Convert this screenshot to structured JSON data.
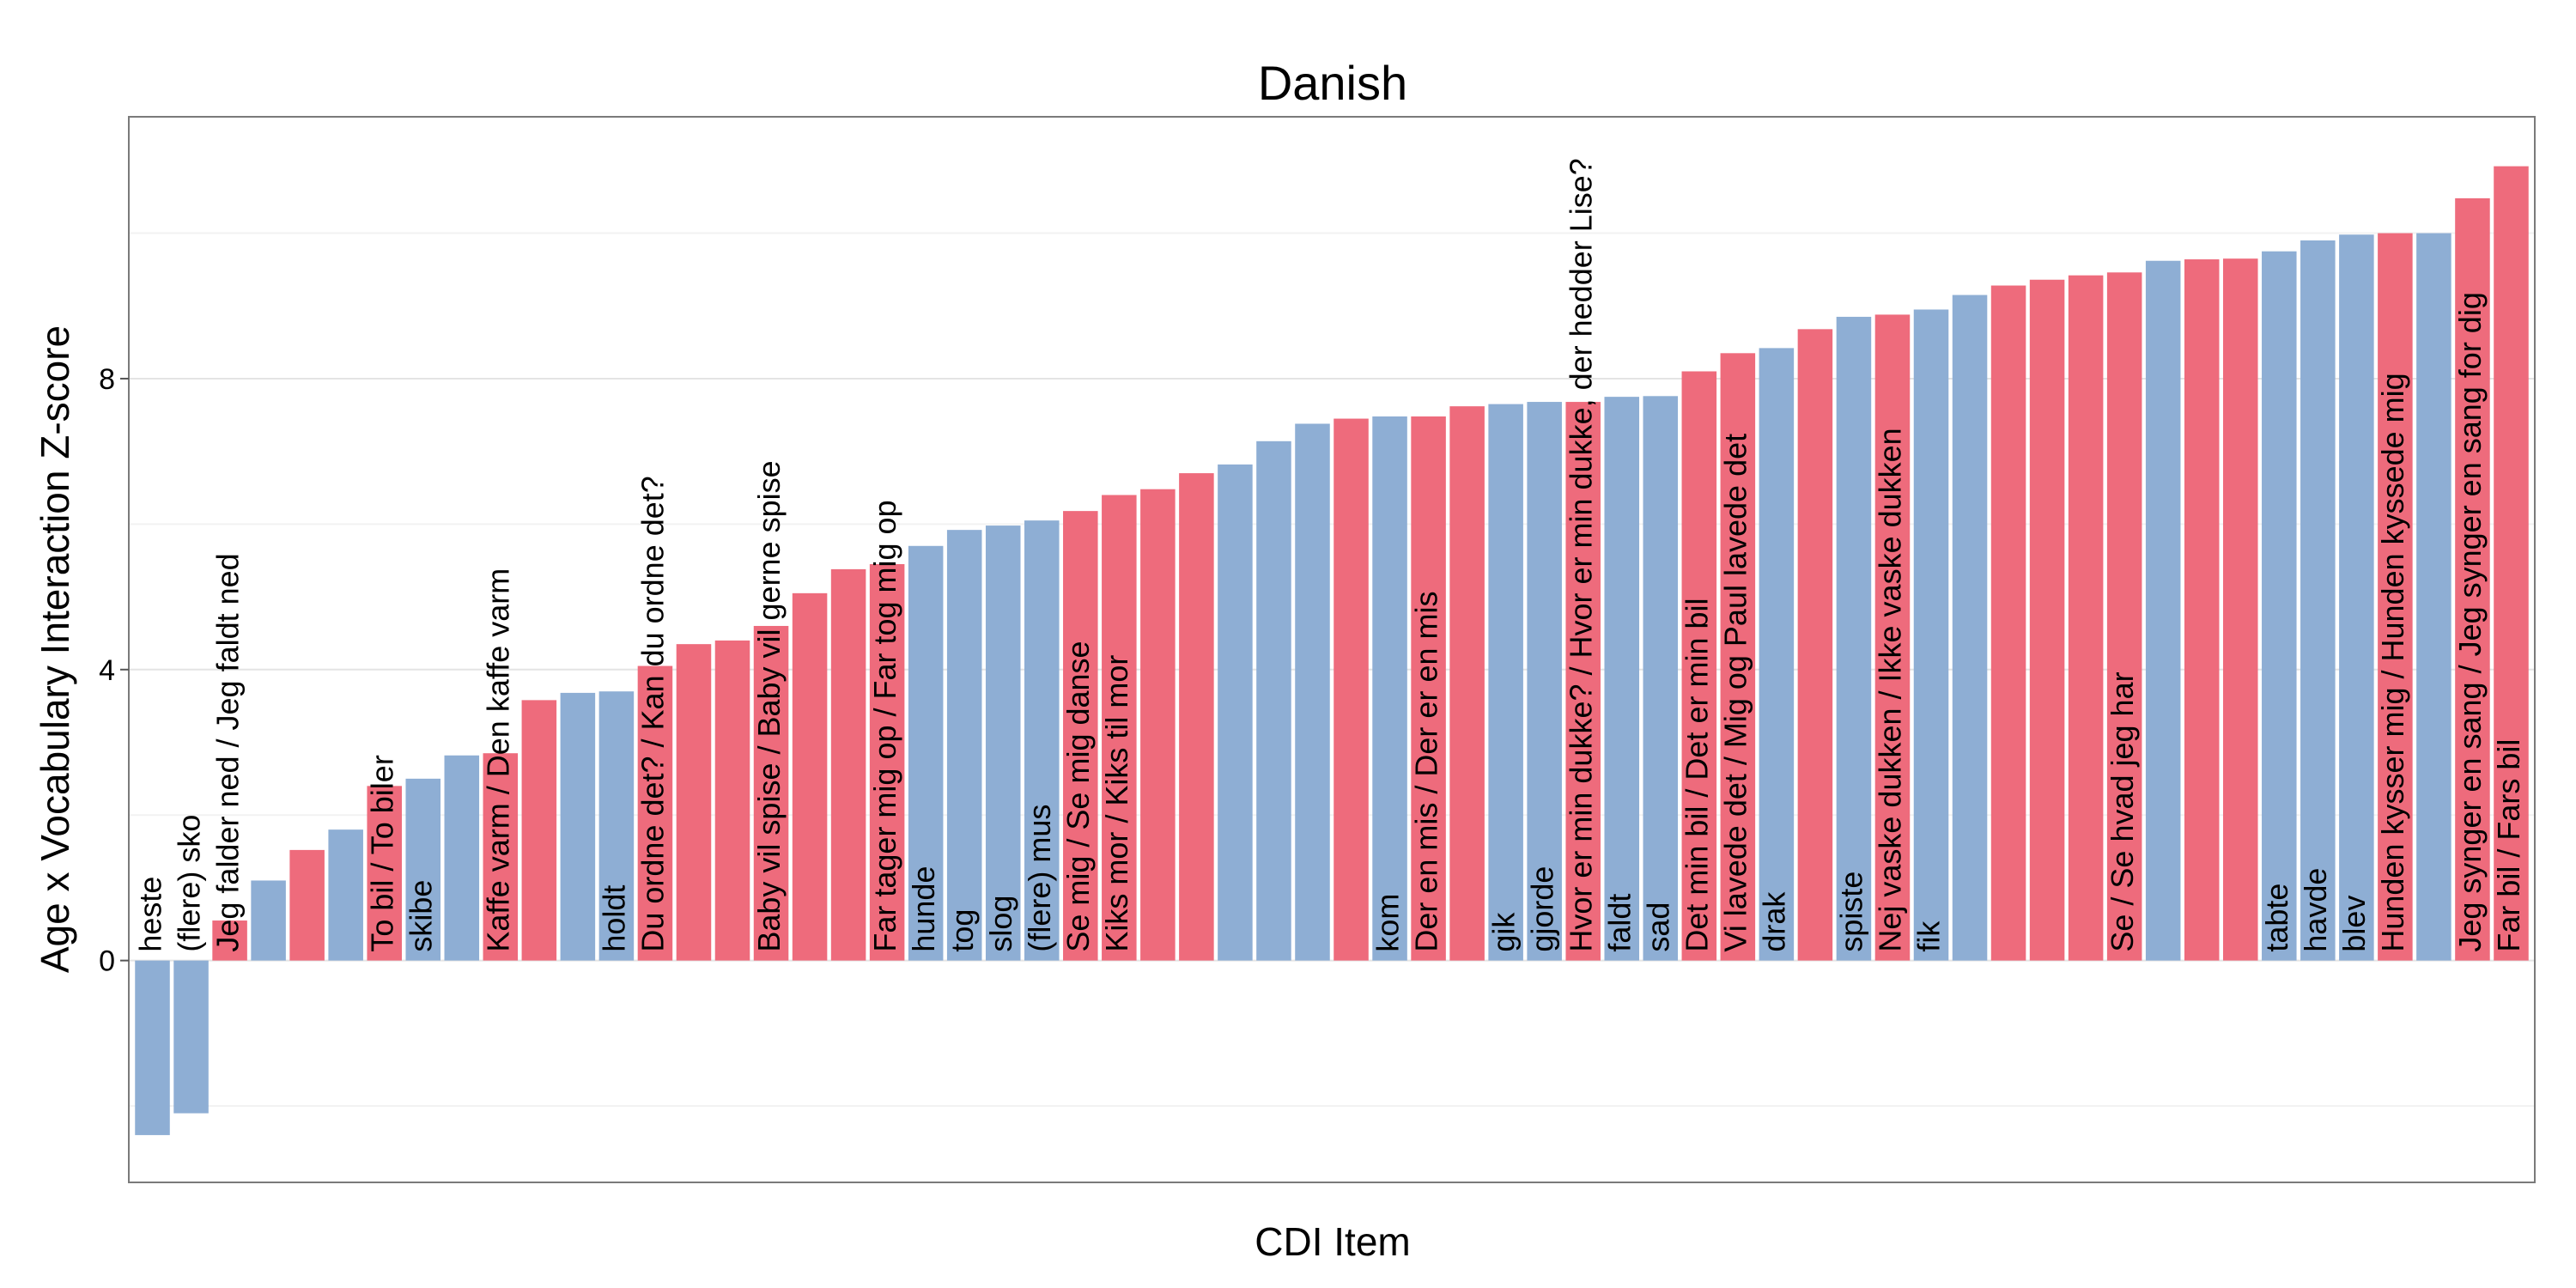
{
  "chart_data": {
    "type": "bar",
    "title": "Danish",
    "xlabel": "CDI Item",
    "ylabel": "Age x Vocabulary Interaction Z-score",
    "ylim": [
      -3.05,
      11.6
    ],
    "yticks": [
      0,
      4,
      8
    ],
    "grid": true,
    "legend": "none",
    "colors": {
      "blue": "#8eaed4",
      "red": "#ee6b7c"
    },
    "bars": [
      {
        "label": "heste",
        "value": -2.4,
        "color": "blue"
      },
      {
        "label": "(flere) sko",
        "value": -2.1,
        "color": "blue"
      },
      {
        "label": "Jeg falder ned / Jeg faldt ned",
        "value": 0.55,
        "color": "red"
      },
      {
        "label": "",
        "value": 1.1,
        "color": "blue"
      },
      {
        "label": "",
        "value": 1.52,
        "color": "red"
      },
      {
        "label": "",
        "value": 1.8,
        "color": "blue"
      },
      {
        "label": "To bil / To biler",
        "value": 2.4,
        "color": "red"
      },
      {
        "label": "skibe",
        "value": 2.5,
        "color": "blue"
      },
      {
        "label": "",
        "value": 2.82,
        "color": "blue"
      },
      {
        "label": "Kaffe varm / Den kaffe varm",
        "value": 2.85,
        "color": "red"
      },
      {
        "label": "",
        "value": 3.58,
        "color": "red"
      },
      {
        "label": "",
        "value": 3.68,
        "color": "blue"
      },
      {
        "label": "holdt",
        "value": 3.7,
        "color": "blue"
      },
      {
        "label": "Du ordne det? / Kan du ordne det?",
        "value": 4.05,
        "color": "red"
      },
      {
        "label": "",
        "value": 4.35,
        "color": "red"
      },
      {
        "label": "",
        "value": 4.4,
        "color": "red"
      },
      {
        "label": "Baby vil spise / Baby vil gerne spise",
        "value": 4.6,
        "color": "red"
      },
      {
        "label": "",
        "value": 5.05,
        "color": "red"
      },
      {
        "label": "",
        "value": 5.38,
        "color": "red"
      },
      {
        "label": "Far tager mig op / Far tog mig op",
        "value": 5.45,
        "color": "red"
      },
      {
        "label": "hunde",
        "value": 5.7,
        "color": "blue"
      },
      {
        "label": "tog",
        "value": 5.92,
        "color": "blue"
      },
      {
        "label": "slog",
        "value": 5.98,
        "color": "blue"
      },
      {
        "label": "(flere) mus",
        "value": 6.05,
        "color": "blue"
      },
      {
        "label": "Se mig / Se mig danse",
        "value": 6.18,
        "color": "red"
      },
      {
        "label": "Kiks mor / Kiks til mor",
        "value": 6.4,
        "color": "red"
      },
      {
        "label": "",
        "value": 6.48,
        "color": "red"
      },
      {
        "label": "",
        "value": 6.7,
        "color": "red"
      },
      {
        "label": "",
        "value": 6.82,
        "color": "blue"
      },
      {
        "label": "",
        "value": 7.14,
        "color": "blue"
      },
      {
        "label": "",
        "value": 7.38,
        "color": "blue"
      },
      {
        "label": "",
        "value": 7.45,
        "color": "red"
      },
      {
        "label": "kom",
        "value": 7.48,
        "color": "blue"
      },
      {
        "label": "Der en mis / Der er en mis",
        "value": 7.48,
        "color": "red"
      },
      {
        "label": "",
        "value": 7.62,
        "color": "red"
      },
      {
        "label": "gik",
        "value": 7.65,
        "color": "blue"
      },
      {
        "label": "gjorde",
        "value": 7.68,
        "color": "blue"
      },
      {
        "label": "Hvor er min dukke? / Hvor er min dukke, der hedder Lise?",
        "value": 7.68,
        "color": "red"
      },
      {
        "label": "faldt",
        "value": 7.75,
        "color": "blue"
      },
      {
        "label": "sad",
        "value": 7.76,
        "color": "blue"
      },
      {
        "label": "Det min bil / Det er min bil",
        "value": 8.1,
        "color": "red"
      },
      {
        "label": "Vi lavede det / Mig og Paul lavede det",
        "value": 8.35,
        "color": "red"
      },
      {
        "label": "drak",
        "value": 8.42,
        "color": "blue"
      },
      {
        "label": "",
        "value": 8.68,
        "color": "red"
      },
      {
        "label": "spiste",
        "value": 8.85,
        "color": "blue"
      },
      {
        "label": "Nej vaske dukken / Ikke vaske dukken",
        "value": 8.88,
        "color": "red"
      },
      {
        "label": "fik",
        "value": 8.95,
        "color": "blue"
      },
      {
        "label": "",
        "value": 9.15,
        "color": "blue"
      },
      {
        "label": "",
        "value": 9.28,
        "color": "red"
      },
      {
        "label": "",
        "value": 9.36,
        "color": "red"
      },
      {
        "label": "",
        "value": 9.42,
        "color": "red"
      },
      {
        "label": "Se / Se hvad jeg har",
        "value": 9.46,
        "color": "red"
      },
      {
        "label": "",
        "value": 9.62,
        "color": "blue"
      },
      {
        "label": "",
        "value": 9.64,
        "color": "red"
      },
      {
        "label": "",
        "value": 9.65,
        "color": "red"
      },
      {
        "label": "tabte",
        "value": 9.75,
        "color": "blue"
      },
      {
        "label": "havde",
        "value": 9.9,
        "color": "blue"
      },
      {
        "label": "blev",
        "value": 9.98,
        "color": "blue"
      },
      {
        "label": "Hunden kysser mig / Hunden kyssede mig",
        "value": 10.0,
        "color": "red"
      },
      {
        "label": "",
        "value": 10.0,
        "color": "blue"
      },
      {
        "label": "Jeg synger en sang / Jeg synger en sang for dig",
        "value": 10.48,
        "color": "red"
      },
      {
        "label": "Far bil / Fars bil",
        "value": 10.92,
        "color": "red"
      }
    ]
  }
}
